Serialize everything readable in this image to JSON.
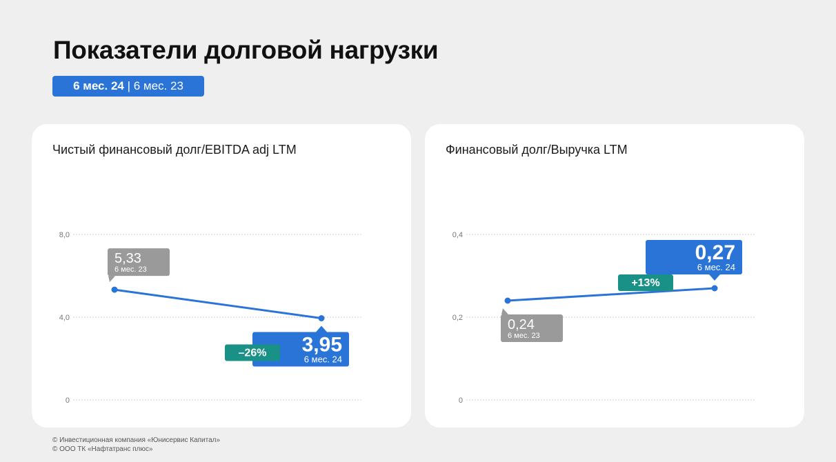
{
  "page": {
    "title": "Показатели долговой нагрузки",
    "period_current": "6 мес. 24",
    "period_separator": " | ",
    "period_previous": "6 мес. 23"
  },
  "colors": {
    "blue": "#2a74d8",
    "gray": "#9a9a9a",
    "teal": "#1a9187",
    "card": "#ffffff",
    "background": "#efefef"
  },
  "chart_data": [
    {
      "type": "line",
      "title": "Чистый финансовый долг/EBITDA adj LTM",
      "ylim": [
        0,
        8
      ],
      "yticks": [
        0,
        4,
        8
      ],
      "ytick_labels": [
        "0",
        "4,0",
        "8,0"
      ],
      "grid": true,
      "x": [
        "6 мес. 23",
        "6 мес. 24"
      ],
      "values": [
        5.33,
        3.95
      ],
      "labels": [
        "5,33",
        "3,95"
      ],
      "change": "–26%"
    },
    {
      "type": "line",
      "title": "Финансовый долг/Выручка LTM",
      "ylim": [
        0,
        0.4
      ],
      "yticks": [
        0,
        0.2,
        0.4
      ],
      "ytick_labels": [
        "0",
        "0,2",
        "0,4"
      ],
      "grid": true,
      "x": [
        "6 мес. 23",
        "6 мес. 24"
      ],
      "values": [
        0.24,
        0.27
      ],
      "labels": [
        "0,24",
        "0,27"
      ],
      "change": "+13%"
    }
  ],
  "footer": {
    "line1": "© Инвестиционная компания «Юнисервис Капитал»",
    "line2": "© ООО ТК «Нафтатранс плюс»"
  }
}
